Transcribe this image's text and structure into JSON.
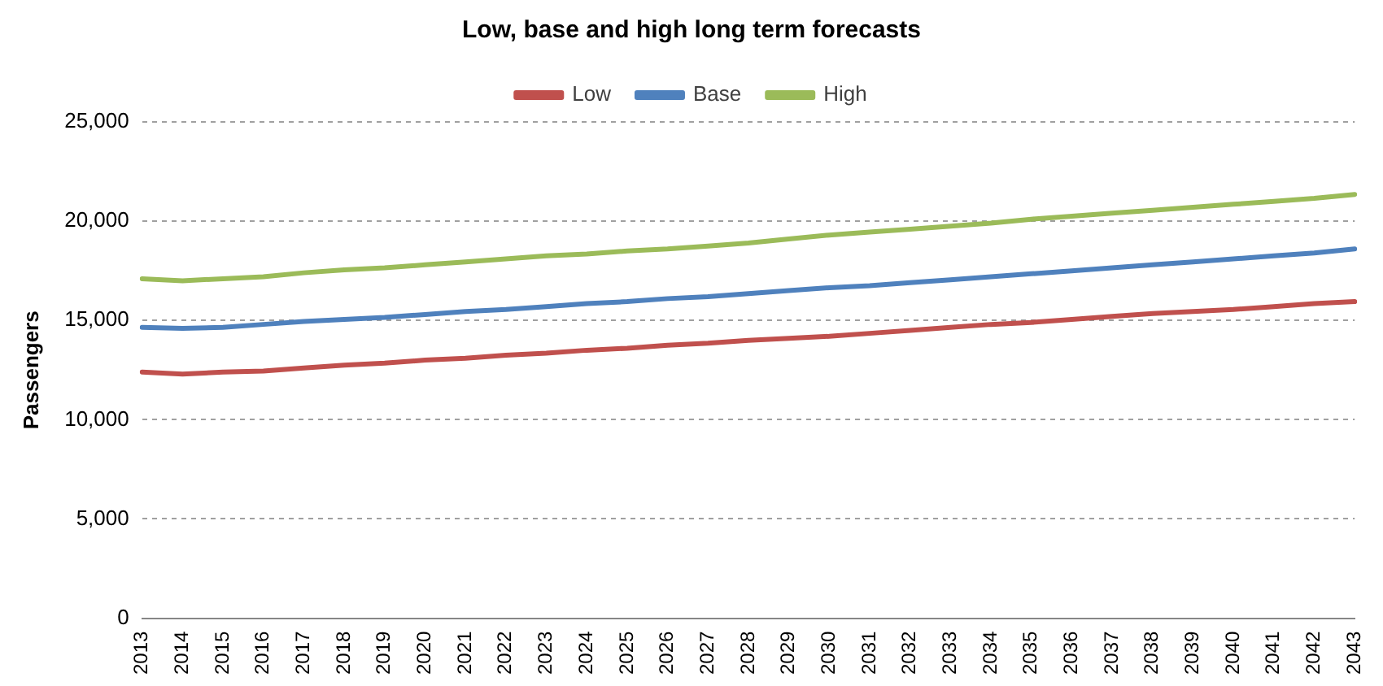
{
  "chart_data": {
    "type": "line",
    "title": "Low, base and high long term forecasts",
    "ylabel": "Passengers",
    "categories": [
      "2013",
      "2014",
      "2015",
      "2016",
      "2017",
      "2018",
      "2019",
      "2020",
      "2021",
      "2022",
      "2023",
      "2024",
      "2025",
      "2026",
      "2027",
      "2028",
      "2029",
      "2030",
      "2031",
      "2032",
      "2033",
      "2034",
      "2035",
      "2036",
      "2037",
      "2038",
      "2039",
      "2040",
      "2041",
      "2042",
      "2043"
    ],
    "series": [
      {
        "name": "Low",
        "color": "#c0504d",
        "values": [
          12400,
          12300,
          12400,
          12450,
          12600,
          12750,
          12850,
          13000,
          13100,
          13250,
          13350,
          13500,
          13600,
          13750,
          13850,
          14000,
          14100,
          14200,
          14350,
          14500,
          14650,
          14800,
          14900,
          15050,
          15200,
          15350,
          15450,
          15550,
          15700,
          15850,
          15950
        ]
      },
      {
        "name": "Base",
        "color": "#4f81bd",
        "values": [
          14650,
          14600,
          14650,
          14800,
          14950,
          15050,
          15150,
          15300,
          15450,
          15550,
          15700,
          15850,
          15950,
          16100,
          16200,
          16350,
          16500,
          16650,
          16750,
          16900,
          17050,
          17200,
          17350,
          17500,
          17650,
          17800,
          17950,
          18100,
          18250,
          18400,
          18600
        ]
      },
      {
        "name": "High",
        "color": "#9bbb59",
        "values": [
          17100,
          17000,
          17100,
          17200,
          17400,
          17550,
          17650,
          17800,
          17950,
          18100,
          18250,
          18350,
          18500,
          18600,
          18750,
          18900,
          19100,
          19300,
          19450,
          19600,
          19750,
          19900,
          20100,
          20250,
          20400,
          20550,
          20700,
          20850,
          21000,
          21150,
          21350
        ]
      }
    ],
    "ylim": [
      0,
      25000
    ],
    "yticks": [
      0,
      {
        "value": 5000,
        "label": "5,000"
      },
      {
        "value": 10000,
        "label": "10,000"
      },
      {
        "value": 15000,
        "label": "15,000"
      },
      {
        "value": 20000,
        "label": "20,000"
      },
      {
        "value": 25000,
        "label": "25,000"
      }
    ],
    "grid": "y",
    "legend": "top",
    "marker": "none",
    "line_style": "solid"
  }
}
